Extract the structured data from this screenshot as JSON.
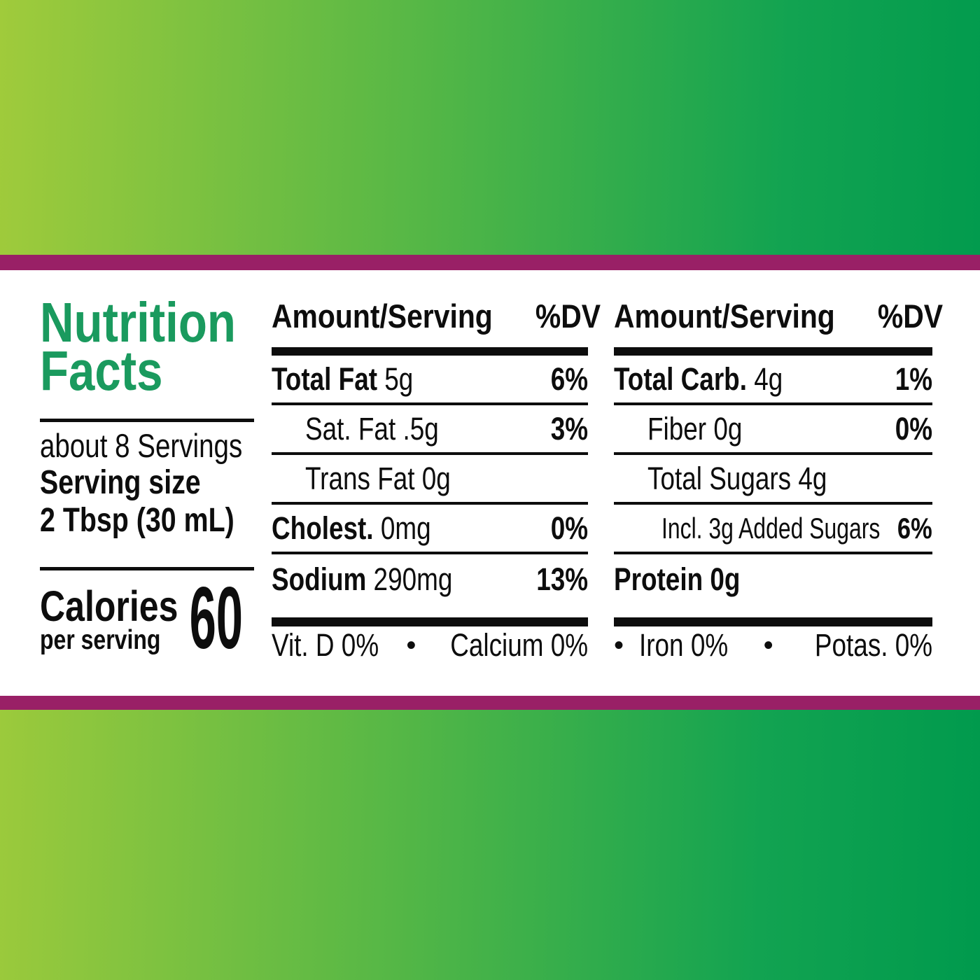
{
  "colors": {
    "gradient_left": "#a0cb3b",
    "gradient_right": "#009a4d",
    "accent_stripe": "#992066",
    "panel": "#ffffff",
    "title_green": "#1a9a5e",
    "text": "#0d0d0d"
  },
  "title": {
    "line1": "Nutrition",
    "line2": "Facts"
  },
  "serving": {
    "servings_count": "about 8 Servings",
    "size_label": "Serving size",
    "size_value": "2 Tbsp (30 mL)"
  },
  "calories": {
    "label": "Calories",
    "sublabel": "per serving",
    "value": "60"
  },
  "columns": [
    {
      "header": {
        "amount": "Amount/Serving",
        "dv": "%DV"
      },
      "rows": [
        {
          "bold": "Total Fat",
          "text": " 5g",
          "dv": "6%",
          "indent": 0
        },
        {
          "bold": "",
          "text": "Sat. Fat .5g",
          "dv": "3%",
          "indent": 1
        },
        {
          "bold": "",
          "text": "Trans Fat 0g",
          "dv": "",
          "indent": 1
        },
        {
          "bold": "Cholest.",
          "text": " 0mg",
          "dv": "0%",
          "indent": 0
        },
        {
          "bold": "Sodium",
          "text": " 290mg",
          "dv": "13%",
          "indent": 0
        }
      ],
      "footer": {
        "leading_bullet": false,
        "bullet": "•",
        "items": [
          "Vit. D 0%",
          "Calcium 0%"
        ]
      }
    },
    {
      "header": {
        "amount": "Amount/Serving",
        "dv": "%DV"
      },
      "rows": [
        {
          "bold": "Total Carb.",
          "text": " 4g",
          "dv": "1%",
          "indent": 0
        },
        {
          "bold": "",
          "text": "Fiber 0g",
          "dv": "0%",
          "indent": 1
        },
        {
          "bold": "",
          "text": "Total Sugars 4g",
          "dv": "",
          "indent": 1
        },
        {
          "bold": "",
          "text": "Incl. 3g Added Sugars",
          "dv": "6%",
          "indent": 2
        },
        {
          "bold": "Protein 0g",
          "text": "",
          "dv": "",
          "indent": 0
        }
      ],
      "footer": {
        "leading_bullet": true,
        "bullet": "•",
        "items": [
          "Iron 0%",
          "Potas. 0%"
        ]
      }
    }
  ]
}
